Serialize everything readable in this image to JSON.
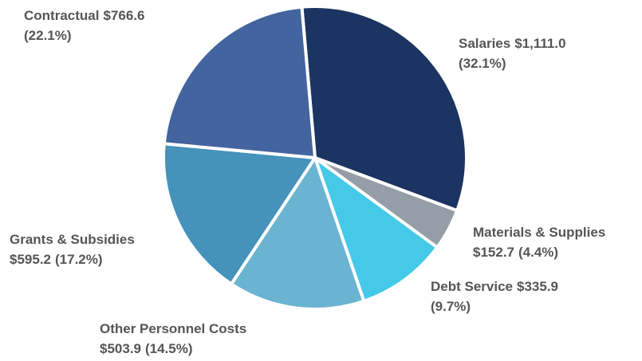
{
  "chart_data": {
    "type": "pie",
    "categories": [
      "Salaries",
      "Materials & Supplies",
      "Debt Service",
      "Other Personnel Costs",
      "Grants & Subsidies",
      "Contractual"
    ],
    "values": [
      1111.0,
      152.7,
      335.9,
      503.9,
      595.2,
      766.6
    ],
    "value_labels": [
      "$1,111.0",
      "$152.7",
      "$335.9",
      "$503.9",
      "$595.2",
      "$766.6"
    ],
    "percents": [
      32.1,
      4.4,
      9.7,
      14.5,
      17.2,
      22.1
    ],
    "percent_labels": [
      "(32.1%)",
      "(4.4%)",
      "(9.7%)",
      "(14.5%)",
      "(17.2%)",
      "(22.1%)"
    ],
    "colors": [
      "#1b3461",
      "#959ea6",
      "#45c9e8",
      "#6ab4d1",
      "#4592bb",
      "#43649e"
    ]
  }
}
